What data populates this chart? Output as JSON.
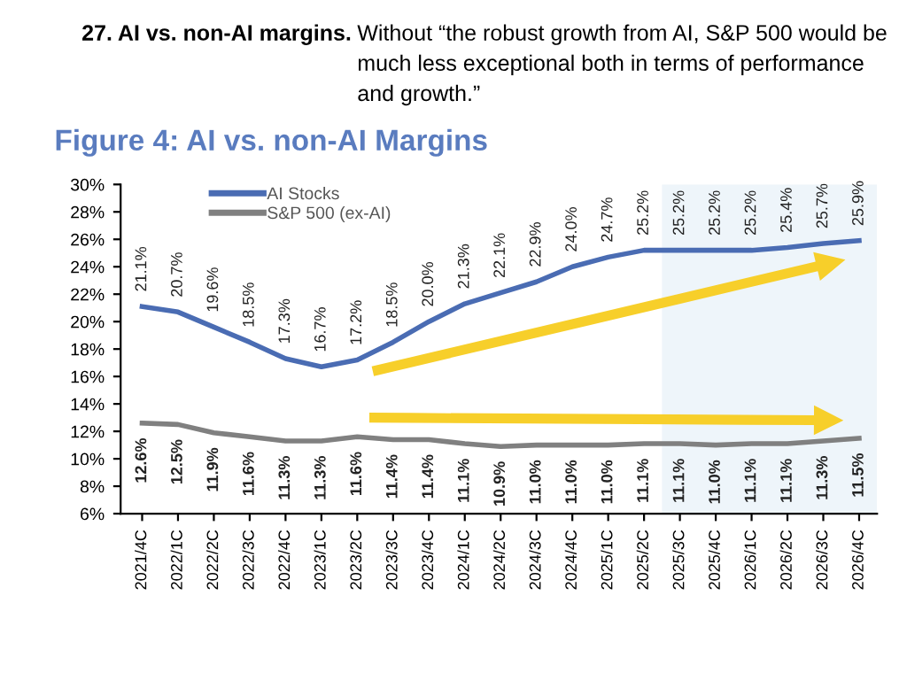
{
  "chart_data": {
    "type": "line",
    "title": "Figure 4: AI vs. non-AI Margins",
    "annotations": [
      "27. AI vs. non-AI margins.",
      "Without “the robust growth from AI, S&P 500 would be much less exceptional both in terms of performance and growth.”"
    ],
    "categories": [
      "2021/4C",
      "2022/1C",
      "2022/2C",
      "2022/3C",
      "2022/4C",
      "2023/1C",
      "2023/2C",
      "2023/3C",
      "2023/4C",
      "2024/1C",
      "2024/2C",
      "2024/3C",
      "2024/4C",
      "2025/1C",
      "2025/2C",
      "2025/3C",
      "2025/4C",
      "2026/1C",
      "2026/2C",
      "2026/3C",
      "2026/4C"
    ],
    "series": [
      {
        "name": "AI Stocks",
        "color": "#4a6cb3",
        "values": [
          21.1,
          20.7,
          19.6,
          18.5,
          17.3,
          16.7,
          17.2,
          18.5,
          20.0,
          21.3,
          22.1,
          22.9,
          24.0,
          24.7,
          25.2,
          25.2,
          25.2,
          25.2,
          25.4,
          25.7,
          25.9
        ],
        "value_labels": [
          "21.1%",
          "20.7%",
          "19.6%",
          "18.5%",
          "17.3%",
          "16.7%",
          "17.2%",
          "18.5%",
          "20.0%",
          "21.3%",
          "22.1%",
          "22.9%",
          "24.0%",
          "24.7%",
          "25.2%",
          "25.2%",
          "25.2%",
          "25.2%",
          "25.4%",
          "25.7%",
          "25.9%"
        ]
      },
      {
        "name": "S&P 500 (ex-AI)",
        "color": "#808080",
        "values": [
          12.6,
          12.5,
          11.9,
          11.6,
          11.3,
          11.3,
          11.6,
          11.4,
          11.4,
          11.1,
          10.9,
          11.0,
          11.0,
          11.0,
          11.1,
          11.1,
          11.0,
          11.1,
          11.1,
          11.3,
          11.5
        ],
        "value_labels": [
          "12.6%",
          "12.5%",
          "11.9%",
          "11.6%",
          "11.3%",
          "11.3%",
          "11.6%",
          "11.4%",
          "11.4%",
          "11.1%",
          "10.9%",
          "11.0%",
          "11.0%",
          "11.0%",
          "11.1%",
          "11.1%",
          "11.0%",
          "11.1%",
          "11.1%",
          "11.3%",
          "11.5%"
        ]
      }
    ],
    "ylim": [
      6,
      30
    ],
    "yticks": [
      {
        "value": 6,
        "label": "6%"
      },
      {
        "value": 8,
        "label": "8%"
      },
      {
        "value": 10,
        "label": "10%"
      },
      {
        "value": 12,
        "label": "12%"
      },
      {
        "value": 14,
        "label": "14%"
      },
      {
        "value": 16,
        "label": "16%"
      },
      {
        "value": 18,
        "label": "18%"
      },
      {
        "value": 20,
        "label": "20%"
      },
      {
        "value": 22,
        "label": "22%"
      },
      {
        "value": 24,
        "label": "24%"
      },
      {
        "value": 26,
        "label": "26%"
      },
      {
        "value": 28,
        "label": "28%"
      },
      {
        "value": 30,
        "label": "30%"
      }
    ],
    "bands": [
      {
        "axis": "x",
        "from": "2025/3C",
        "to": "2026/4C",
        "color": "#eef5fa"
      }
    ],
    "legend": "top left",
    "grid": false,
    "marker": "none",
    "line_style": "solid"
  }
}
